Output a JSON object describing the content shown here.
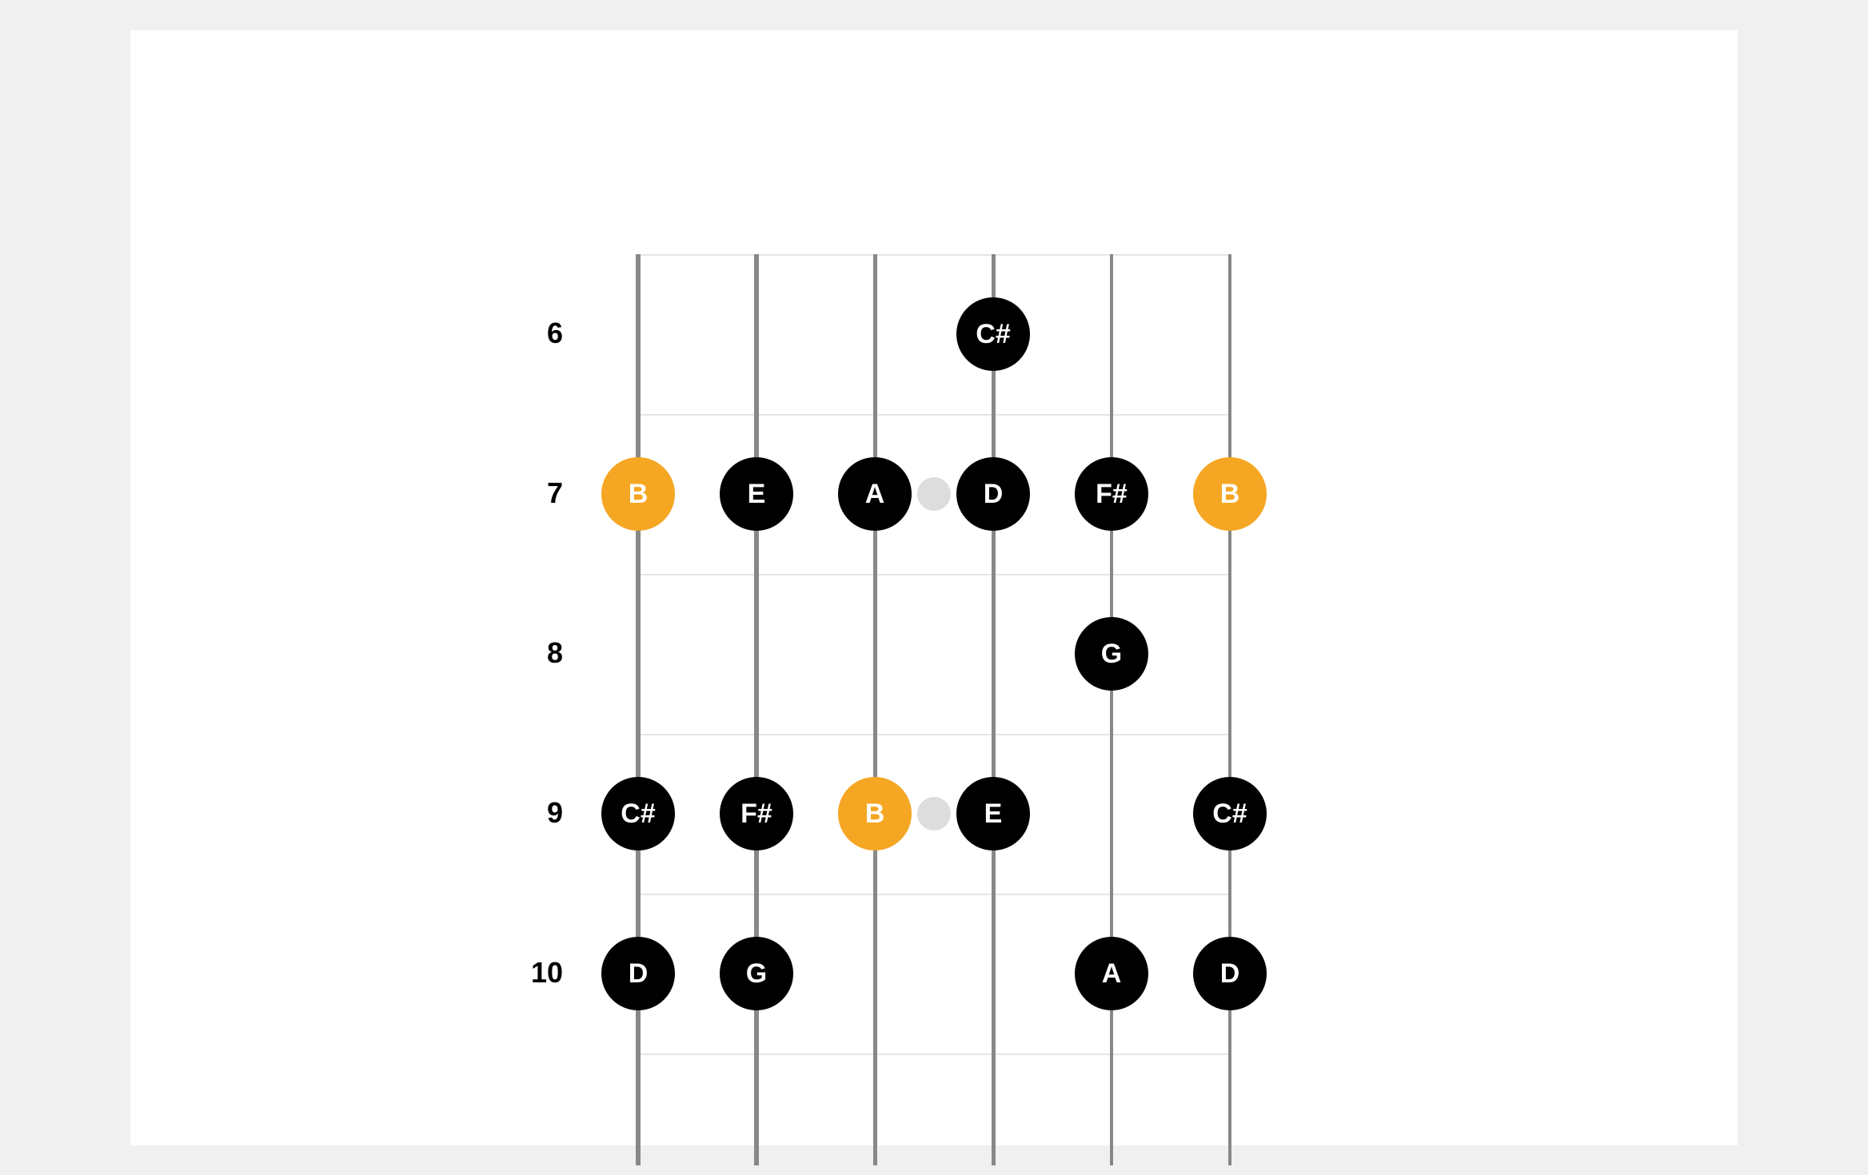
{
  "fretboard": {
    "type": "guitar-fretboard-diagram",
    "num_strings": 6,
    "string_spacing": 148,
    "fret_height": 200,
    "total_height": 1140,
    "string_widths": [
      6,
      6,
      5,
      5,
      4,
      4
    ],
    "string_color": "#888888",
    "fret_line_color": "#e5e5e5",
    "fret_line_height": 2,
    "background_color": "#ffffff",
    "page_background": "#f0f0f0",
    "fret_numbers": [
      {
        "label": "6",
        "fret": 0
      },
      {
        "label": "7",
        "fret": 1
      },
      {
        "label": "8",
        "fret": 2
      },
      {
        "label": "9",
        "fret": 3
      },
      {
        "label": "10",
        "fret": 4
      }
    ],
    "fret_number_fontsize": 36,
    "fret_number_color": "#000000",
    "fret_number_offset": 48,
    "inlays": [
      {
        "fret": 1,
        "string_between": 2.5,
        "size": 42
      },
      {
        "fret": 3,
        "string_between": 2.5,
        "size": 42
      }
    ],
    "inlay_color": "#dddddd",
    "note_size": 92,
    "note_fontsize": 34,
    "note_color_normal": "#000000",
    "note_color_root": "#f5a623",
    "note_text_color": "#ffffff",
    "notes": [
      {
        "fret": 0,
        "string": 3,
        "label": "C#",
        "root": false
      },
      {
        "fret": 1,
        "string": 0,
        "label": "B",
        "root": true
      },
      {
        "fret": 1,
        "string": 1,
        "label": "E",
        "root": false
      },
      {
        "fret": 1,
        "string": 2,
        "label": "A",
        "root": false
      },
      {
        "fret": 1,
        "string": 3,
        "label": "D",
        "root": false
      },
      {
        "fret": 1,
        "string": 4,
        "label": "F#",
        "root": false
      },
      {
        "fret": 1,
        "string": 5,
        "label": "B",
        "root": true
      },
      {
        "fret": 2,
        "string": 4,
        "label": "G",
        "root": false
      },
      {
        "fret": 3,
        "string": 0,
        "label": "C#",
        "root": false
      },
      {
        "fret": 3,
        "string": 1,
        "label": "F#",
        "root": false
      },
      {
        "fret": 3,
        "string": 2,
        "label": "B",
        "root": true
      },
      {
        "fret": 3,
        "string": 3,
        "label": "E",
        "root": false
      },
      {
        "fret": 3,
        "string": 5,
        "label": "C#",
        "root": false
      },
      {
        "fret": 4,
        "string": 0,
        "label": "D",
        "root": false
      },
      {
        "fret": 4,
        "string": 1,
        "label": "G",
        "root": false
      },
      {
        "fret": 4,
        "string": 4,
        "label": "A",
        "root": false
      },
      {
        "fret": 4,
        "string": 5,
        "label": "D",
        "root": false
      }
    ]
  }
}
